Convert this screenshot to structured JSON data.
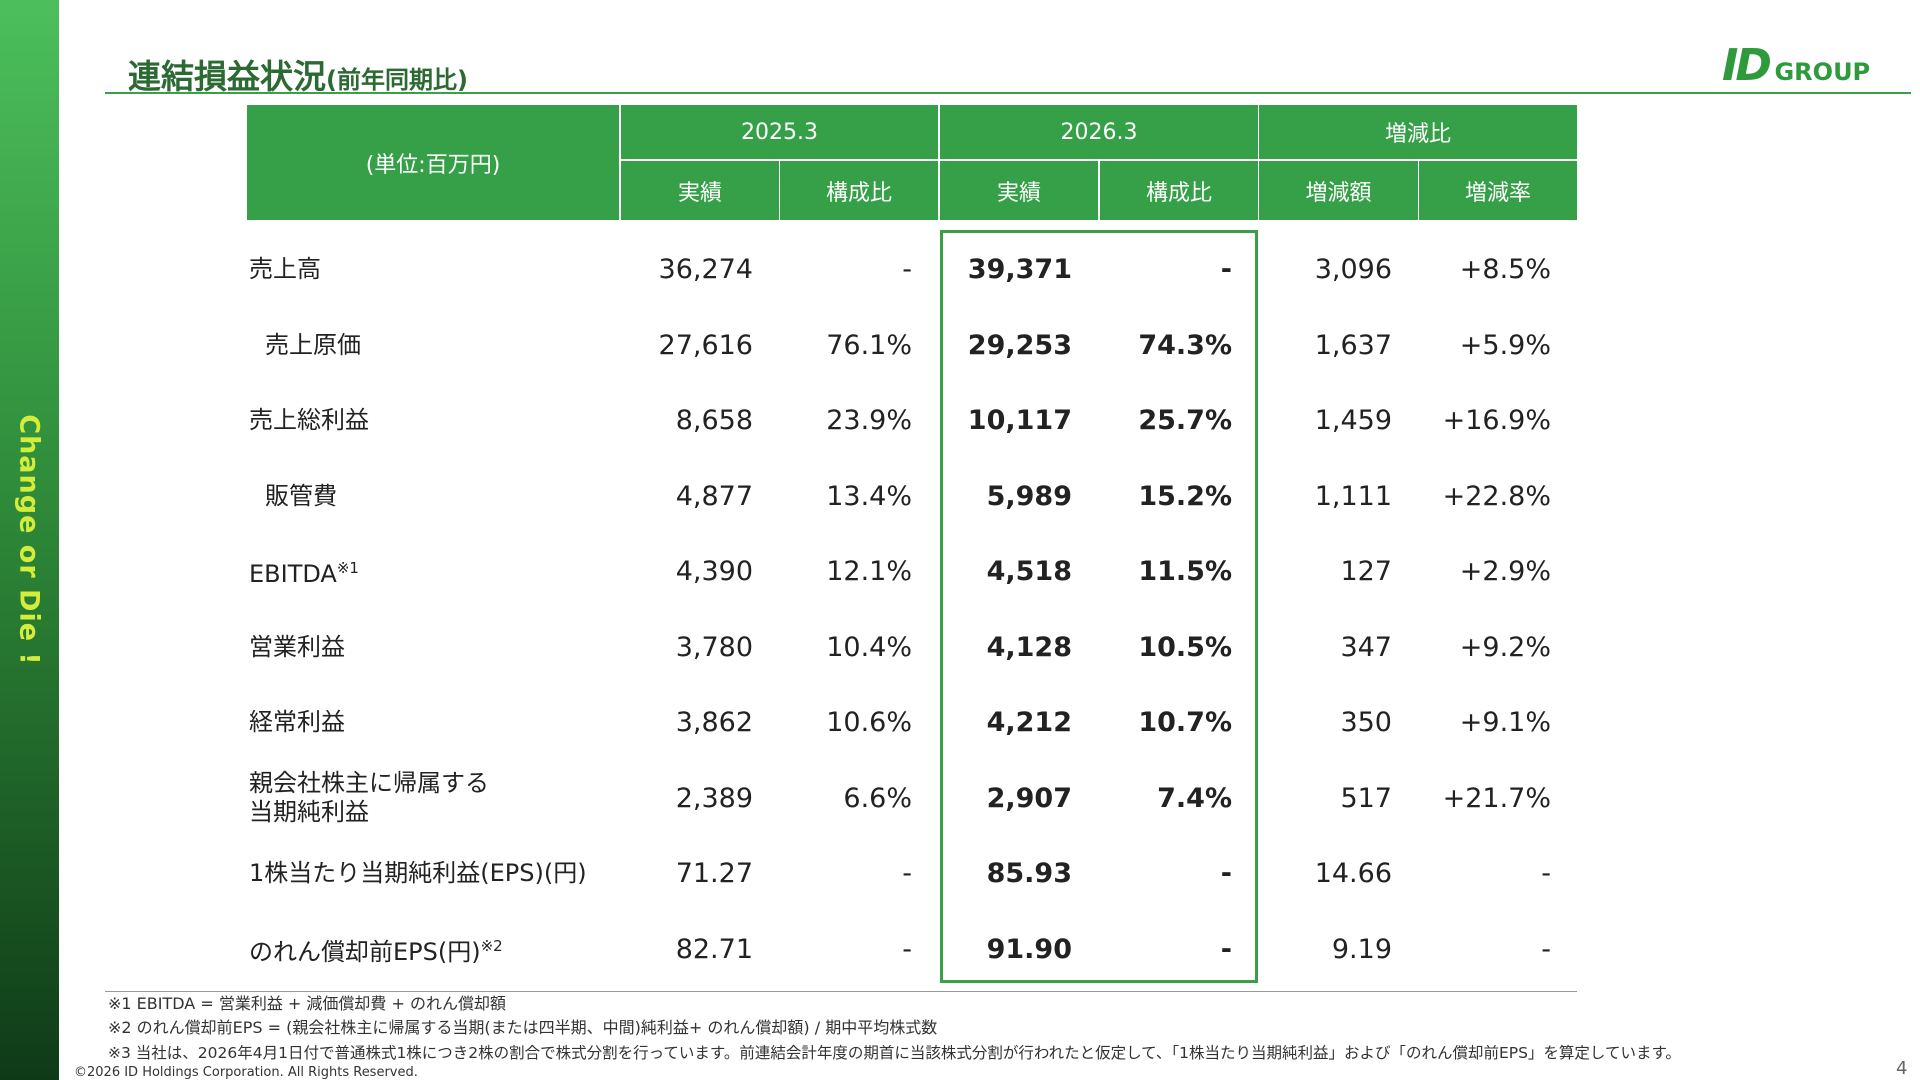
{
  "header": {
    "title": "連結損益状況",
    "subtitle": "(前年同期比)",
    "logo_mark": "ID",
    "logo_text": "GROUP"
  },
  "sidebar": {
    "text": "Change or Die !"
  },
  "table": {
    "unit": "(単位:百万円)",
    "groups": [
      "2025.3",
      "2026.3",
      "増減比"
    ],
    "subheaders": [
      "実績",
      "構成比",
      "実績",
      "構成比",
      "増減額",
      "増減率"
    ],
    "rows": [
      {
        "label": [
          "売上高"
        ],
        "values": [
          "36,274",
          "-",
          "39,371",
          "-",
          "3,096",
          "+8.5%"
        ]
      },
      {
        "label": [
          "売上原価"
        ],
        "indent": true,
        "values": [
          "27,616",
          "76.1%",
          "29,253",
          "74.3%",
          "1,637",
          "+5.9%"
        ]
      },
      {
        "label": [
          "売上総利益"
        ],
        "values": [
          "8,658",
          "23.9%",
          "10,117",
          "25.7%",
          "1,459",
          "+16.9%"
        ]
      },
      {
        "label": [
          "販管費"
        ],
        "indent": true,
        "values": [
          "4,877",
          "13.4%",
          "5,989",
          "15.2%",
          "1,111",
          "+22.8%"
        ]
      },
      {
        "label": [
          "EBITDA"
        ],
        "note": "※1",
        "values": [
          "4,390",
          "12.1%",
          "4,518",
          "11.5%",
          "127",
          "+2.9%"
        ]
      },
      {
        "label": [
          "営業利益"
        ],
        "values": [
          "3,780",
          "10.4%",
          "4,128",
          "10.5%",
          "347",
          "+9.2%"
        ]
      },
      {
        "label": [
          "経常利益"
        ],
        "values": [
          "3,862",
          "10.6%",
          "4,212",
          "10.7%",
          "350",
          "+9.1%"
        ]
      },
      {
        "label": [
          "親会社株主に帰属する",
          "当期純利益"
        ],
        "values": [
          "2,389",
          "6.6%",
          "2,907",
          "7.4%",
          "517",
          "+21.7%"
        ]
      },
      {
        "label": [
          "1株当たり当期純利益(EPS)(円)"
        ],
        "values": [
          "71.27",
          "-",
          "85.93",
          "-",
          "14.66",
          "-"
        ]
      },
      {
        "label": [
          "のれん償却前EPS(円)"
        ],
        "note": "※2",
        "values": [
          "82.71",
          "-",
          "91.90",
          "-",
          "9.19",
          "-"
        ]
      }
    ]
  },
  "footnotes": [
    "※1 EBITDA = 営業利益 + 減価償却費 + のれん償却額",
    "※2 のれん償却前EPS = (親会社株主に帰属する当期(または四半期、中間)純利益+ のれん償却額) / 期中平均株式数",
    "※3 当社は、2026年4月1日付で普通株式1株につき2株の割合で株式分割を行っています。前連結会計年度の期首に当該株式分割が行われたと仮定して、「1株当たり当期純利益」および「のれん償却前EPS」を算定しています。"
  ],
  "footer": {
    "copyright": "©2026 ID Holdings Corporation. All Rights Reserved.",
    "page": "4"
  }
}
